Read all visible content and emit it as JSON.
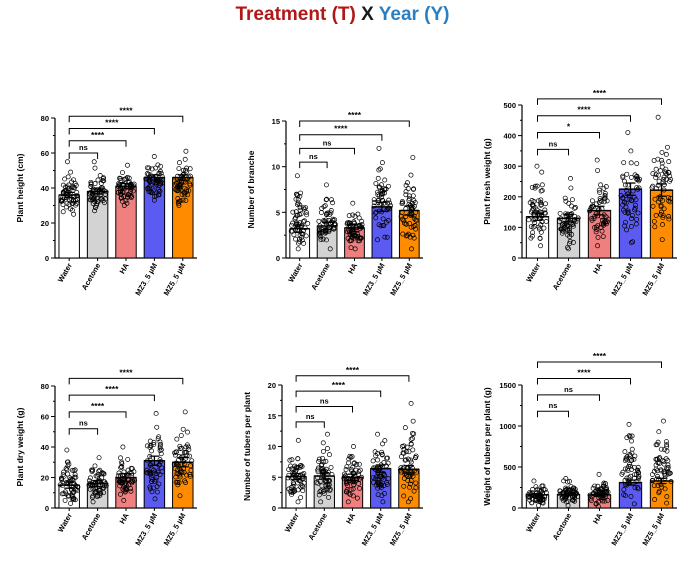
{
  "figure_title": {
    "treatment": "Treatment (T)",
    "cross": "X",
    "year": "Year (Y)"
  },
  "colors": {
    "Water": "#ffffff",
    "Acetone": "#d3d3d3",
    "HA": "#f07f7f",
    "MZ3_5 µM": "#5b5bf2",
    "MZ5_5 µM": "#ff8c00"
  },
  "chart_data": [
    {
      "type": "bar",
      "title": "",
      "ylabel": "Plant height (cm)",
      "ylim": [
        0,
        80
      ],
      "yticks": [
        0,
        20,
        40,
        60,
        80
      ],
      "categories": [
        "Water",
        "Acetone",
        "HA",
        "MZ3_5 µM",
        "MZ5_5 µM"
      ],
      "values": [
        36,
        38,
        41,
        46,
        46
      ],
      "errors": [
        1.5,
        1.5,
        1.5,
        1.5,
        1.5
      ],
      "spread": [
        [
          25,
          55
        ],
        [
          27,
          55
        ],
        [
          30,
          53
        ],
        [
          33,
          58
        ],
        [
          30,
          61
        ]
      ],
      "comparisons": [
        {
          "from": 0,
          "to": 1,
          "label": "ns",
          "y": 60
        },
        {
          "from": 0,
          "to": 2,
          "label": "****",
          "y": 67
        },
        {
          "from": 0,
          "to": 3,
          "label": "****",
          "y": 74
        },
        {
          "from": 0,
          "to": 4,
          "label": "****",
          "y": 81
        }
      ]
    },
    {
      "type": "bar",
      "title": "",
      "ylabel": "Number of branche",
      "ylim": [
        0,
        15
      ],
      "yticks": [
        0,
        5,
        10,
        15
      ],
      "categories": [
        "Water",
        "Acetone",
        "HA",
        "MZ3_5 µM",
        "MZ5_5 µM"
      ],
      "values": [
        3.2,
        3.5,
        3.3,
        5.6,
        5.2
      ],
      "errors": [
        0.4,
        0.4,
        0.4,
        0.5,
        0.5
      ],
      "spread": [
        [
          1,
          9
        ],
        [
          1,
          8
        ],
        [
          1,
          6
        ],
        [
          2,
          12
        ],
        [
          1,
          11
        ]
      ],
      "comparisons": [
        {
          "from": 0,
          "to": 1,
          "label": "ns",
          "y": 10.5
        },
        {
          "from": 0,
          "to": 2,
          "label": "ns",
          "y": 12.0
        },
        {
          "from": 0,
          "to": 3,
          "label": "****",
          "y": 13.5
        },
        {
          "from": 0,
          "to": 4,
          "label": "****",
          "y": 15.0
        }
      ]
    },
    {
      "type": "bar",
      "title": "",
      "ylabel": "Plant fresh weight (g)",
      "ylim": [
        0,
        500
      ],
      "yticks": [
        0,
        100,
        200,
        300,
        400,
        500
      ],
      "categories": [
        "Water",
        "Acetone",
        "HA",
        "MZ3_5 µM",
        "MZ5_5 µM"
      ],
      "values": [
        135,
        130,
        155,
        225,
        222
      ],
      "errors": [
        12,
        12,
        14,
        20,
        20
      ],
      "spread": [
        [
          40,
          300
        ],
        [
          30,
          260
        ],
        [
          40,
          320
        ],
        [
          50,
          410
        ],
        [
          60,
          460
        ]
      ],
      "comparisons": [
        {
          "from": 0,
          "to": 1,
          "label": "ns",
          "y": 355
        },
        {
          "from": 0,
          "to": 2,
          "label": "*",
          "y": 410
        },
        {
          "from": 0,
          "to": 3,
          "label": "****",
          "y": 465
        },
        {
          "from": 0,
          "to": 4,
          "label": "****",
          "y": 520
        }
      ]
    },
    {
      "type": "bar",
      "title": "",
      "ylabel": "Plant dry weight  (g)",
      "ylim": [
        0,
        80
      ],
      "yticks": [
        0,
        20,
        40,
        60,
        80
      ],
      "categories": [
        "Water",
        "Acetone",
        "HA",
        "MZ3_5 µM",
        "MZ5_5 µM"
      ],
      "values": [
        15,
        16,
        20,
        31,
        30
      ],
      "errors": [
        2,
        2,
        2.5,
        3,
        3
      ],
      "spread": [
        [
          3,
          38
        ],
        [
          4,
          33
        ],
        [
          5,
          40
        ],
        [
          6,
          62
        ],
        [
          8,
          63
        ]
      ],
      "comparisons": [
        {
          "from": 0,
          "to": 1,
          "label": "ns",
          "y": 52
        },
        {
          "from": 0,
          "to": 2,
          "label": "****",
          "y": 63
        },
        {
          "from": 0,
          "to": 3,
          "label": "****",
          "y": 74
        },
        {
          "from": 0,
          "to": 4,
          "label": "****",
          "y": 85
        }
      ]
    },
    {
      "type": "bar",
      "title": "",
      "ylabel": "Number of tubers per plant",
      "ylim": [
        0,
        20
      ],
      "yticks": [
        0,
        5,
        10,
        15,
        20
      ],
      "categories": [
        "Water",
        "Acetone",
        "HA",
        "MZ3_5 µM",
        "MZ5_5 µM"
      ],
      "values": [
        5.1,
        5.2,
        5.0,
        6.4,
        6.3
      ],
      "errors": [
        0.5,
        0.5,
        0.5,
        0.6,
        0.6
      ],
      "spread": [
        [
          1,
          11
        ],
        [
          1,
          12
        ],
        [
          1,
          10
        ],
        [
          1,
          12
        ],
        [
          1,
          17
        ]
      ],
      "comparisons": [
        {
          "from": 0,
          "to": 1,
          "label": "ns",
          "y": 14.0
        },
        {
          "from": 0,
          "to": 2,
          "label": "ns",
          "y": 16.5
        },
        {
          "from": 0,
          "to": 3,
          "label": "****",
          "y": 19.0
        },
        {
          "from": 0,
          "to": 4,
          "label": "****",
          "y": 21.5
        }
      ]
    },
    {
      "type": "bar",
      "title": "",
      "ylabel": "Weight of tubers per plant (g)",
      "ylim": [
        0,
        1500
      ],
      "yticks": [
        0,
        500,
        1000,
        1500
      ],
      "categories": [
        "Water",
        "Acetone",
        "HA",
        "MZ3_5 µM",
        "MZ5_5 µM"
      ],
      "values": [
        160,
        165,
        160,
        310,
        330
      ],
      "errors": [
        15,
        15,
        15,
        30,
        32
      ],
      "spread": [
        [
          30,
          330
        ],
        [
          30,
          360
        ],
        [
          20,
          410
        ],
        [
          50,
          1020
        ],
        [
          60,
          1060
        ]
      ],
      "comparisons": [
        {
          "from": 0,
          "to": 1,
          "label": "ns",
          "y": 1180
        },
        {
          "from": 0,
          "to": 2,
          "label": "ns",
          "y": 1380
        },
        {
          "from": 0,
          "to": 3,
          "label": "****",
          "y": 1580
        },
        {
          "from": 0,
          "to": 4,
          "label": "****",
          "y": 1780
        }
      ]
    }
  ]
}
